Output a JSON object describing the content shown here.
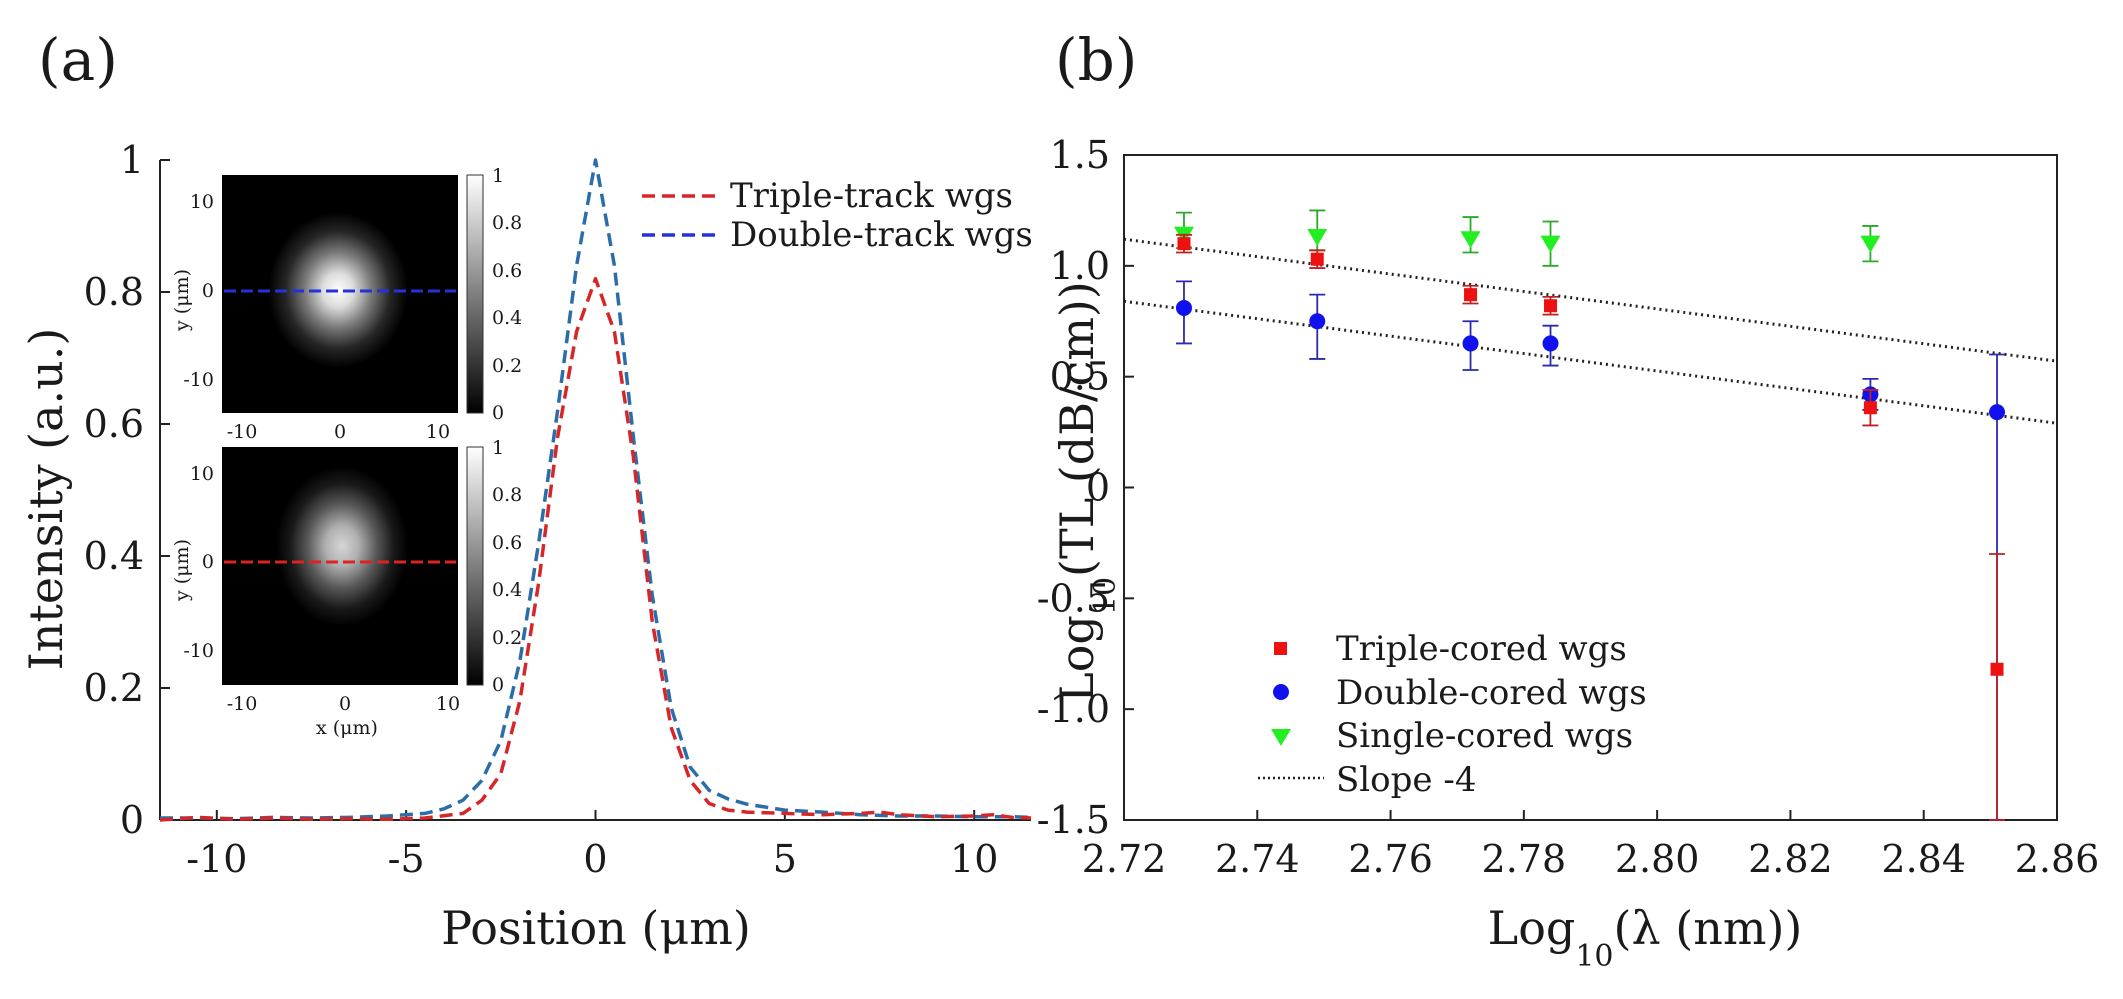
{
  "chart_data": [
    {
      "panel": "(a)",
      "type": "line",
      "xlabel": "Position (μm)",
      "ylabel": "Intensity (a.u.)",
      "xlim": [
        -11.5,
        11.5
      ],
      "ylim": [
        0,
        1
      ],
      "xticks": [
        -10,
        -5,
        0,
        5,
        10
      ],
      "yticks": [
        0,
        0.2,
        0.4,
        0.6,
        0.8,
        1
      ],
      "xtick_labels": [
        "-10",
        "-5",
        "0",
        "5",
        "10"
      ],
      "ytick_labels": [
        "0",
        "0.2",
        "0.4",
        "0.6",
        "0.8",
        "1"
      ],
      "grid": false,
      "legend": "top-right",
      "series": [
        {
          "name": "Triple-track wgs",
          "color": "#d62728",
          "style": "dashed",
          "x": [
            -11.5,
            -10.5,
            -9.5,
            -8.5,
            -7.5,
            -6.5,
            -5.5,
            -4.5,
            -3.5,
            -3.0,
            -2.5,
            -2.0,
            -1.5,
            -1.0,
            -0.5,
            0,
            0.5,
            1.0,
            1.5,
            2.0,
            2.5,
            3.0,
            3.5,
            4.0,
            5.0,
            6.0,
            7.0,
            7.5,
            8.0,
            9.0,
            10.0,
            10.5,
            11.0,
            11.5
          ],
          "y": [
            0.0,
            0.004,
            0.001,
            0.003,
            0.001,
            0.002,
            0.001,
            0.003,
            0.01,
            0.03,
            0.07,
            0.18,
            0.36,
            0.58,
            0.74,
            0.82,
            0.74,
            0.55,
            0.3,
            0.14,
            0.06,
            0.025,
            0.015,
            0.012,
            0.01,
            0.008,
            0.01,
            0.012,
            0.008,
            0.005,
            0.006,
            0.008,
            0.004,
            0.003
          ]
        },
        {
          "name": "Double-track wgs",
          "color": "#2b6da8",
          "style": "dashed",
          "x": [
            -11.5,
            -10.5,
            -9.5,
            -8.5,
            -7.5,
            -6.5,
            -5.5,
            -4.5,
            -4.0,
            -3.5,
            -3.0,
            -2.5,
            -2.0,
            -1.5,
            -1.0,
            -0.5,
            0,
            0.5,
            1.0,
            1.5,
            2.0,
            2.5,
            3.0,
            3.5,
            4.0,
            5.0,
            6.0,
            7.0,
            8.0,
            9.0,
            10.0,
            11.0,
            11.5
          ],
          "y": [
            0.003,
            0.003,
            0.002,
            0.004,
            0.003,
            0.004,
            0.006,
            0.01,
            0.017,
            0.03,
            0.06,
            0.12,
            0.24,
            0.42,
            0.62,
            0.84,
            1.0,
            0.84,
            0.58,
            0.34,
            0.17,
            0.08,
            0.045,
            0.032,
            0.024,
            0.015,
            0.012,
            0.008,
            0.006,
            0.006,
            0.005,
            0.005,
            0.004
          ]
        }
      ],
      "insets": [
        {
          "ylabel": "y (μm)",
          "xticks": [
            "-10",
            "0",
            "10"
          ],
          "yticks": [
            "10",
            "0",
            "-10"
          ],
          "colorbar_ticks": [
            "1",
            "0.8",
            "0.6",
            "0.4",
            "0.2",
            "0"
          ],
          "line_color": "#2233dd"
        },
        {
          "xlabel": "x (μm)",
          "ylabel": "y (μm)",
          "xticks": [
            "-10",
            "0",
            "10"
          ],
          "yticks": [
            "10",
            "0",
            "-10"
          ],
          "colorbar_ticks": [
            "1",
            "0.8",
            "0.6",
            "0.4",
            "0.2",
            "0"
          ],
          "line_color": "#dd2222"
        }
      ]
    },
    {
      "panel": "(b)",
      "type": "scatter",
      "xlabel_main": "Log",
      "xlabel_sub": "10",
      "xlabel_rest": "(λ (nm))",
      "ylabel_main": "Log",
      "ylabel_sub": "10",
      "ylabel_rest": "(TL (dB/cm))",
      "xlim": [
        2.72,
        2.86
      ],
      "ylim": [
        -1.5,
        1.5
      ],
      "xticks": [
        2.72,
        2.74,
        2.76,
        2.78,
        2.8,
        2.82,
        2.84,
        2.86
      ],
      "yticks": [
        -1.5,
        -1.0,
        -0.5,
        0,
        0.5,
        1.0,
        1.5
      ],
      "xtick_labels": [
        "2.72",
        "2.74",
        "2.76",
        "2.78",
        "2.80",
        "2.82",
        "2.84",
        "2.86"
      ],
      "ytick_labels": [
        "-1.5",
        "-1.0",
        "-0.5",
        "0",
        "0.5",
        "1.0",
        "1.5"
      ],
      "grid": false,
      "legend": "bottom-left",
      "series": [
        {
          "name": "Triple-cored wgs",
          "marker": "square",
          "color": "#ee1111",
          "x": [
            2.729,
            2.749,
            2.772,
            2.784,
            2.832,
            2.851
          ],
          "y": [
            1.1,
            1.03,
            0.87,
            0.82,
            0.36,
            -0.82
          ],
          "err_low": [
            0.04,
            0.04,
            0.04,
            0.04,
            0.08,
            0.68
          ],
          "err_high": [
            0.04,
            0.04,
            0.04,
            0.04,
            0.08,
            0.52
          ]
        },
        {
          "name": "Double-cored wgs",
          "marker": "circle",
          "color": "#1111ee",
          "x": [
            2.729,
            2.749,
            2.772,
            2.784,
            2.832,
            2.851
          ],
          "y": [
            0.81,
            0.75,
            0.65,
            0.65,
            0.42,
            0.34
          ],
          "err_low": [
            0.16,
            0.17,
            0.12,
            0.1,
            0.07,
            1.84
          ],
          "err_high": [
            0.12,
            0.12,
            0.1,
            0.08,
            0.07,
            0.26
          ]
        },
        {
          "name": "Single-cored wgs",
          "marker": "triangle-down",
          "color": "#22ee22",
          "x": [
            2.729,
            2.749,
            2.772,
            2.784,
            2.832
          ],
          "y": [
            1.14,
            1.13,
            1.12,
            1.1,
            1.1
          ],
          "err_low": [
            0.06,
            0.06,
            0.06,
            0.1,
            0.08
          ],
          "err_high": [
            0.1,
            0.12,
            0.1,
            0.1,
            0.08
          ]
        }
      ],
      "fit_lines": {
        "name": "Slope -4",
        "style": "dotted",
        "color": "#222222",
        "lines": [
          {
            "x": [
              2.72,
              2.86
            ],
            "y": [
              1.12,
              0.57
            ]
          },
          {
            "x": [
              2.72,
              2.86
            ],
            "y": [
              0.84,
              0.29
            ]
          }
        ]
      }
    }
  ]
}
